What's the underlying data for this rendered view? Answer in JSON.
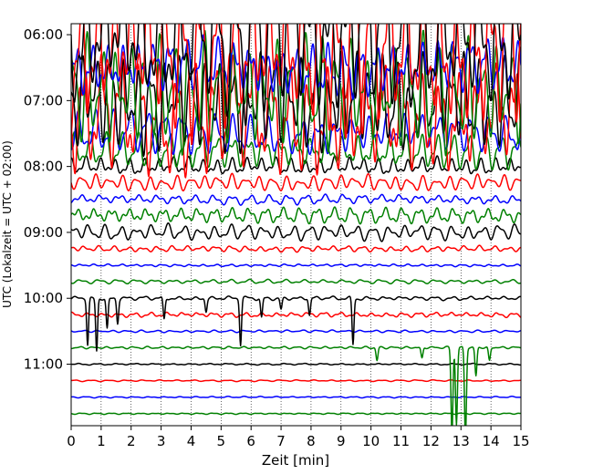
{
  "chart_data": {
    "type": "line",
    "title": "",
    "xlabel": "Zeit  [min]",
    "ylabel": "UTC (Lokalzeit = UTC + 02:00)",
    "xlim": [
      0,
      15
    ],
    "x_ticks": [
      0,
      1,
      2,
      3,
      4,
      5,
      6,
      7,
      8,
      9,
      10,
      11,
      12,
      13,
      14,
      15
    ],
    "y_ticks": [
      "06:00",
      "07:00",
      "08:00",
      "09:00",
      "10:00",
      "11:00"
    ],
    "y_tick_minutes": [
      0,
      60,
      120,
      180,
      240,
      300
    ],
    "ylim_minutes": [
      -10,
      356
    ],
    "y_direction": "down",
    "row_interval_minutes": 15,
    "x_grid": "dotted",
    "series_colors": [
      "#000000",
      "#ff0000",
      "#0000ff",
      "#008000"
    ],
    "rows": [
      {
        "start": "06:00",
        "color": "#000000",
        "amplitude_min": 80,
        "spikes_min": []
      },
      {
        "start": "06:15",
        "color": "#ff0000",
        "amplitude_min": 80,
        "spikes_min": []
      },
      {
        "start": "06:30",
        "color": "#0000ff",
        "amplitude_min": 28,
        "spikes_min": []
      },
      {
        "start": "06:45",
        "color": "#008000",
        "amplitude_min": 60,
        "spikes_min": []
      },
      {
        "start": "07:00",
        "color": "#000000",
        "amplitude_min": 50,
        "spikes_min": []
      },
      {
        "start": "07:15",
        "color": "#ff0000",
        "amplitude_min": 55,
        "spikes_min": []
      },
      {
        "start": "07:30",
        "color": "#0000ff",
        "amplitude_min": 22,
        "spikes_min": []
      },
      {
        "start": "07:45",
        "color": "#008000",
        "amplitude_min": 18,
        "spikes_min": []
      },
      {
        "start": "08:00",
        "color": "#000000",
        "amplitude_min": 9,
        "spikes_min": []
      },
      {
        "start": "08:15",
        "color": "#ff0000",
        "amplitude_min": 8,
        "spikes_min": []
      },
      {
        "start": "08:30",
        "color": "#0000ff",
        "amplitude_min": 5,
        "spikes_min": []
      },
      {
        "start": "08:45",
        "color": "#008000",
        "amplitude_min": 8,
        "spikes_min": []
      },
      {
        "start": "09:00",
        "color": "#000000",
        "amplitude_min": 8,
        "spikes_min": []
      },
      {
        "start": "09:15",
        "color": "#ff0000",
        "amplitude_min": 3,
        "spikes_min": []
      },
      {
        "start": "09:30",
        "color": "#0000ff",
        "amplitude_min": 1.2,
        "spikes_min": []
      },
      {
        "start": "09:45",
        "color": "#008000",
        "amplitude_min": 2.2,
        "spikes_min": []
      },
      {
        "start": "10:00",
        "color": "#000000",
        "amplitude_min": 2,
        "spikes_min": [
          {
            "x": 0.55,
            "depth": 42
          },
          {
            "x": 0.85,
            "depth": 48
          },
          {
            "x": 1.2,
            "depth": 28
          },
          {
            "x": 1.55,
            "depth": 22
          },
          {
            "x": 3.1,
            "depth": 20
          },
          {
            "x": 4.5,
            "depth": 12
          },
          {
            "x": 5.65,
            "depth": 42
          },
          {
            "x": 6.35,
            "depth": 18
          },
          {
            "x": 7.0,
            "depth": 10
          },
          {
            "x": 7.95,
            "depth": 16
          },
          {
            "x": 9.4,
            "depth": 42
          }
        ]
      },
      {
        "start": "10:15",
        "color": "#ff0000",
        "amplitude_min": 2.4,
        "spikes_min": []
      },
      {
        "start": "10:30",
        "color": "#0000ff",
        "amplitude_min": 1.2,
        "spikes_min": []
      },
      {
        "start": "10:45",
        "color": "#008000",
        "amplitude_min": 1.2,
        "spikes_min": [
          {
            "x": 10.2,
            "depth": 12
          },
          {
            "x": 11.7,
            "depth": 10
          },
          {
            "x": 12.7,
            "depth": 78
          },
          {
            "x": 12.85,
            "depth": 70
          },
          {
            "x": 13.15,
            "depth": 82
          },
          {
            "x": 13.5,
            "depth": 26
          },
          {
            "x": 13.95,
            "depth": 12
          }
        ]
      },
      {
        "start": "11:00",
        "color": "#000000",
        "amplitude_min": 0.8,
        "spikes_min": []
      },
      {
        "start": "11:15",
        "color": "#ff0000",
        "amplitude_min": 0.8,
        "spikes_min": []
      },
      {
        "start": "11:30",
        "color": "#0000ff",
        "amplitude_min": 0.7,
        "spikes_min": []
      },
      {
        "start": "11:45",
        "color": "#008000",
        "amplitude_min": 0.7,
        "spikes_min": []
      }
    ]
  }
}
